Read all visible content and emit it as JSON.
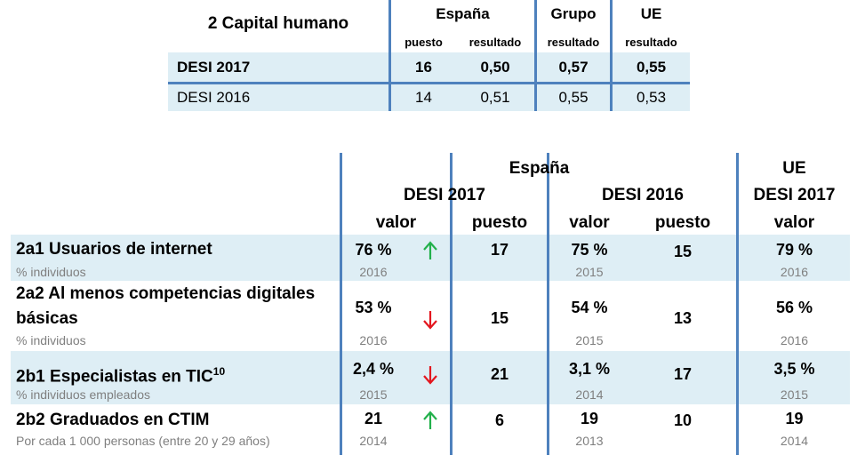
{
  "summary": {
    "title": "2 Capital humano",
    "col_spain": "España",
    "col_group": "Grupo",
    "col_eu": "UE",
    "sub_rank": "puesto",
    "sub_result": "resultado",
    "rows": [
      {
        "label": "DESI 2017",
        "rank": "16",
        "spain": "0,50",
        "group": "0,57",
        "eu": "0,55"
      },
      {
        "label": "DESI 2016",
        "rank": "14",
        "spain": "0,51",
        "group": "0,55",
        "eu": "0,53"
      }
    ]
  },
  "detail": {
    "header": {
      "spain": "España",
      "eu": "UE",
      "desi2017": "DESI 2017",
      "desi2016": "DESI 2016",
      "eu_desi2017": "DESI 2017",
      "valor": "valor",
      "puesto": "puesto"
    },
    "rows": [
      {
        "code_label": "2a1 Usuarios de internet",
        "unit": "% individuos",
        "v2017": "76 %",
        "y2017": "2016",
        "trend": "up",
        "r2017": "17",
        "v2016": "75 %",
        "y2016": "2015",
        "r2016": "15",
        "veu": "79 %",
        "yeu": "2016"
      },
      {
        "code_label_line1": "2a2 Al menos competencias digitales",
        "code_label_line2": "básicas",
        "unit": "% individuos",
        "v2017": "53 %",
        "y2017": "2016",
        "trend": "down",
        "r2017": "15",
        "v2016": "54 %",
        "y2016": "2015",
        "r2016": "13",
        "veu": "56 %",
        "yeu": "2016"
      },
      {
        "code_label": "2b1 Especialistas en TIC",
        "footnote": "10",
        "unit": "% individuos empleados",
        "v2017": "2,4 %",
        "y2017": "2015",
        "trend": "down",
        "r2017": "21",
        "v2016": "3,1 %",
        "y2016": "2014",
        "r2016": "17",
        "veu": "3,5 %",
        "yeu": "2015"
      },
      {
        "code_label": "2b2 Graduados en CTIM",
        "unit": "Por cada 1 000 personas (entre 20 y 29 años)",
        "v2017": "21",
        "y2017": "2014",
        "trend": "up",
        "r2017": "6",
        "v2016": "19",
        "y2016": "2013",
        "r2016": "10",
        "veu": "19",
        "yeu": "2014"
      }
    ]
  },
  "colors": {
    "rule": "#4e81bd",
    "band": "#deeef5",
    "up": "#22b04b",
    "down": "#e3161e",
    "muted": "#7f7f7f"
  },
  "icons": {
    "up": "arrow-up-icon",
    "down": "arrow-down-icon"
  }
}
